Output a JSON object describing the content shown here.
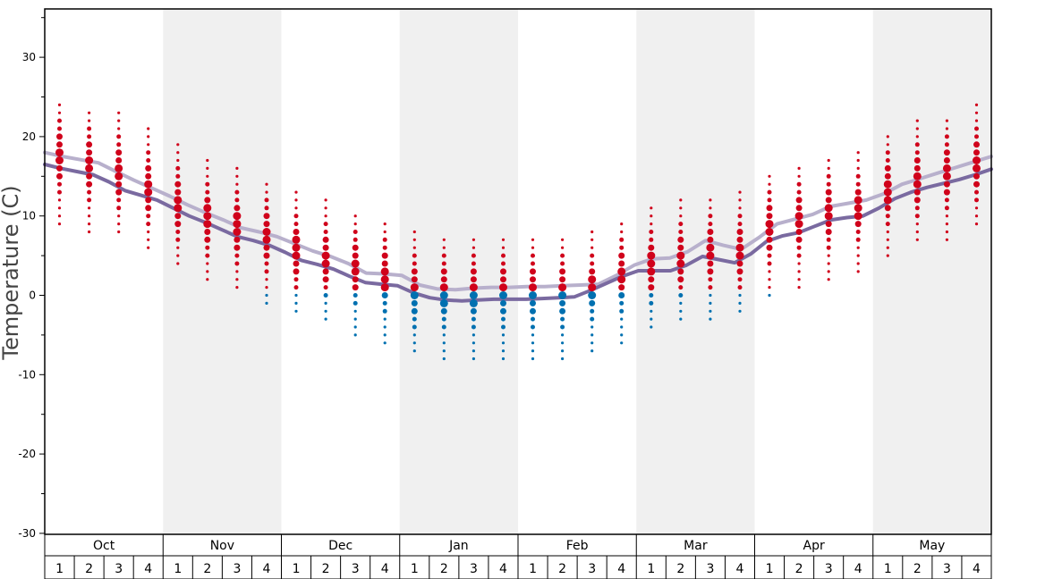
{
  "chart_data": {
    "type": "scatter",
    "ylabel": "Temperature (C)",
    "ylim": [
      -35,
      36
    ],
    "y_ticks": [
      30,
      20,
      10,
      0,
      -10,
      -20,
      -30
    ],
    "y_tick_labels": [
      "30",
      "20",
      "10",
      "0",
      "-10",
      "-20",
      "-30"
    ],
    "months": [
      "Oct",
      "Nov",
      "Dec",
      "Jan",
      "Feb",
      "Mar",
      "Apr",
      "May"
    ],
    "week_labels": [
      "1",
      "2",
      "3",
      "4"
    ],
    "shaded_months": [
      "Nov",
      "Jan",
      "Mar",
      "May"
    ],
    "colors": {
      "warm_dots": "#d0021b",
      "cold_dots": "#0070b0",
      "upper_line": "#b8b0cc",
      "lower_line": "#7a6aa0",
      "band": "#f0f0f0"
    },
    "upper_line": [
      18.0,
      17.5,
      17.1,
      16.7,
      15.6,
      14.5,
      13.5,
      12.5,
      11.4,
      10.4,
      9.5,
      8.5,
      8.0,
      7.4,
      6.5,
      5.6,
      4.9,
      4.0,
      2.8,
      2.7,
      2.5,
      1.3,
      0.8,
      0.7,
      0.9,
      1.0,
      1.0,
      1.1,
      1.1,
      1.2,
      1.3,
      1.4,
      2.5,
      3.8,
      4.6,
      4.7,
      5.5,
      6.9,
      6.3,
      5.8,
      7.3,
      9.0,
      9.6,
      10.2,
      11.2,
      11.6,
      12.0,
      12.8,
      14.0,
      14.7,
      15.4,
      16.1,
      16.8,
      17.5
    ],
    "lower_line": [
      16.5,
      16.0,
      15.6,
      15.2,
      14.3,
      13.2,
      12.6,
      12.0,
      11.0,
      10.0,
      9.2,
      8.3,
      7.4,
      6.9,
      6.3,
      5.4,
      4.4,
      3.9,
      3.3,
      2.4,
      1.6,
      1.4,
      1.2,
      0.3,
      -0.3,
      -0.6,
      -0.7,
      -0.6,
      -0.5,
      -0.5,
      -0.5,
      -0.4,
      -0.3,
      -0.2,
      0.6,
      1.5,
      2.4,
      3.1,
      3.1,
      3.1,
      3.8,
      4.9,
      4.5,
      4.1,
      5.2,
      6.8,
      7.5,
      7.9,
      8.7,
      9.5,
      9.8,
      10.0,
      11.0,
      12.2,
      13.0,
      13.6,
      14.1,
      14.6,
      15.2,
      15.9
    ]
  }
}
